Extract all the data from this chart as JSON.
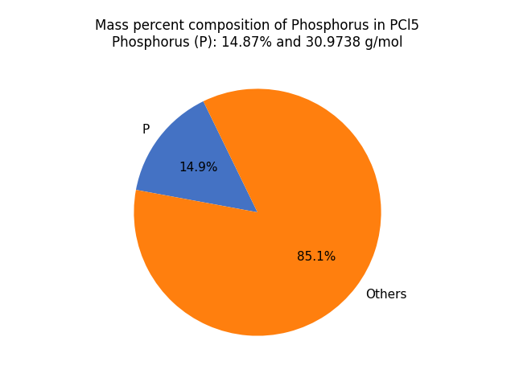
{
  "title_line1": "Mass percent composition of Phosphorus in PCl5",
  "title_line2": "Phosphorus (P): 14.87% and 30.9738 g/mol",
  "slices": [
    14.87,
    85.13
  ],
  "labels": [
    "P",
    "Others"
  ],
  "colors": [
    "#4472C4",
    "#FF7F0E"
  ],
  "startangle": 116,
  "background_color": "#ffffff",
  "title_fontsize": 12,
  "label_fontsize": 11,
  "autopct_fontsize": 11
}
